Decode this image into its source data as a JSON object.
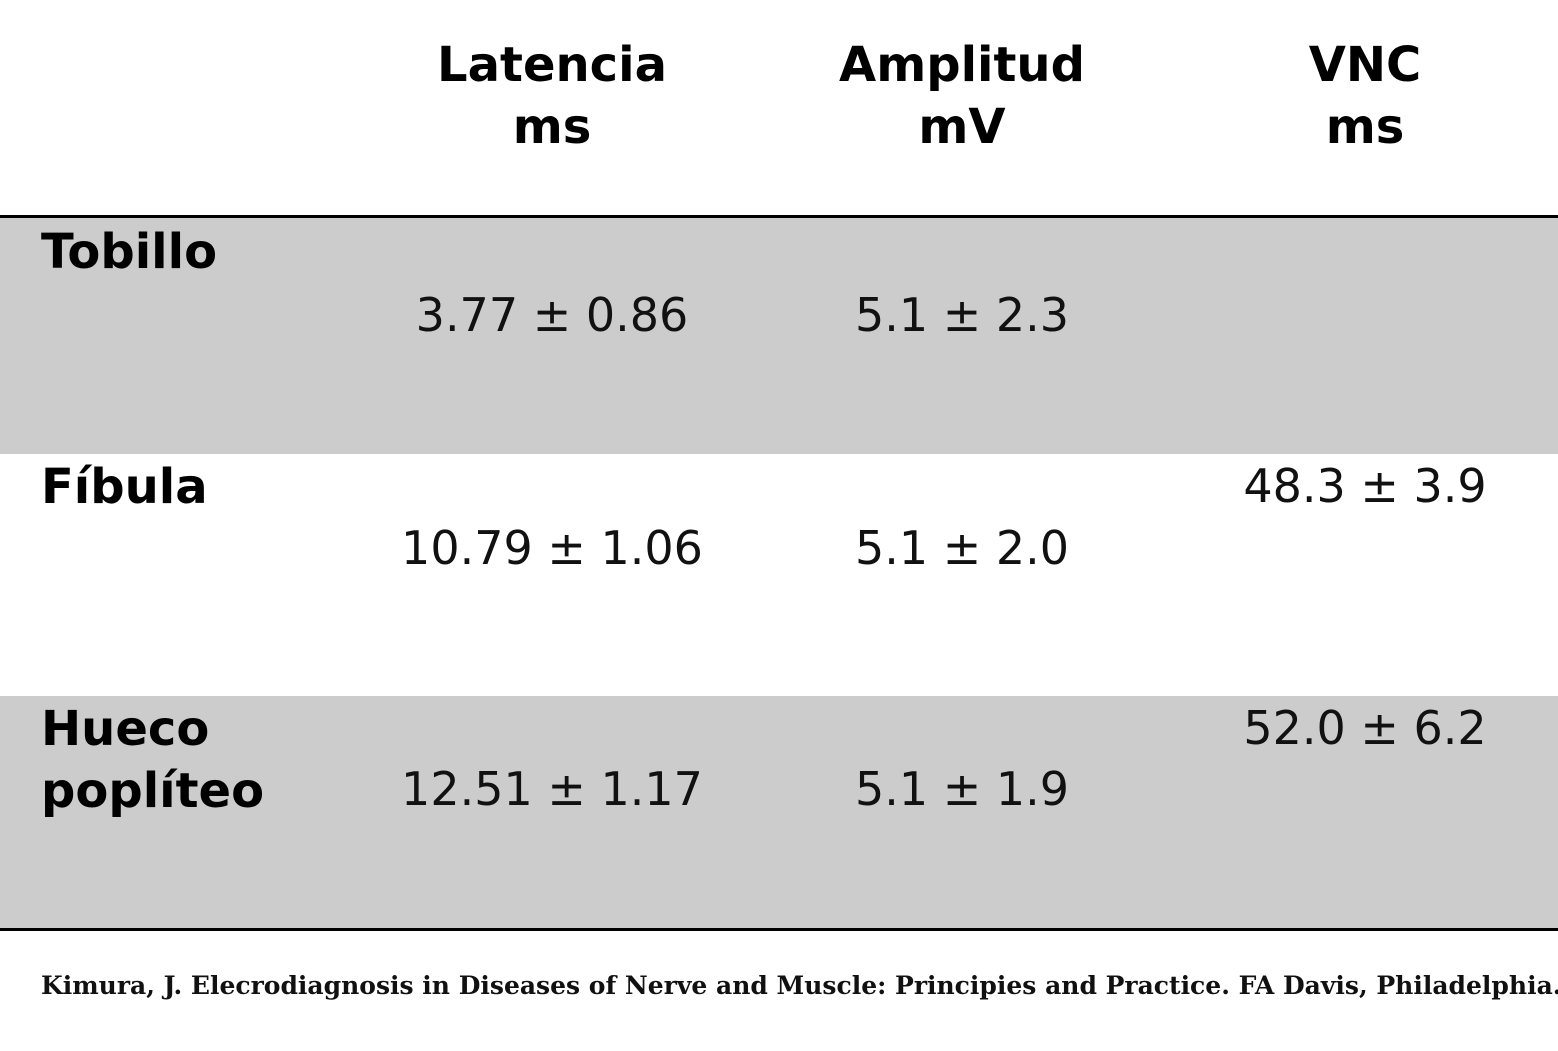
{
  "table": {
    "columns": [
      {
        "label": "Latencia",
        "unit": "ms"
      },
      {
        "label": "Amplitud",
        "unit": "mV"
      },
      {
        "label": "VNC",
        "unit": "ms"
      }
    ],
    "rows": [
      {
        "label_lines": [
          "Tobillo"
        ],
        "latencia": "3.77 ± 0.86",
        "amplitud": "5.1 ± 2.3",
        "vnc": ""
      },
      {
        "label_lines": [
          "Fíbula"
        ],
        "latencia": "10.79 ± 1.06",
        "amplitud": "5.1 ± 2.0",
        "vnc": "48.3 ± 3.9"
      },
      {
        "label_lines": [
          "Hueco",
          "poplíteo"
        ],
        "latencia": "12.51 ± 1.17",
        "amplitud": "5.1 ± 1.9",
        "vnc": "52.0 ± 6.2"
      }
    ]
  },
  "citation": "Kimura, J. Elecrodiagnosis in Diseases of Nerve and Muscle: Principies and Practice. FA Davis, Philadelphia.",
  "colors": {
    "shaded_row": "#cccccc",
    "rule": "#000000",
    "text": "#000000"
  }
}
